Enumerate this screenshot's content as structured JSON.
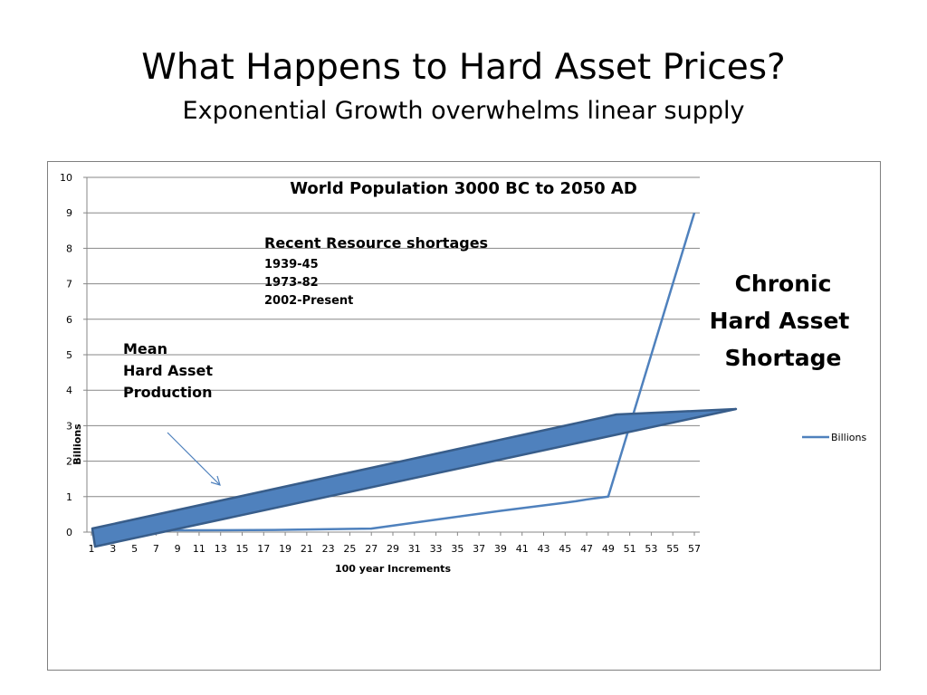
{
  "slide": {
    "title": "What Happens to Hard Asset Prices?",
    "subtitle": "Exponential Growth overwhelms linear supply"
  },
  "chart_data": {
    "type": "line",
    "title": "World Population 3000 BC to 2050 AD",
    "xlabel": "100 year Increments",
    "ylabel": "Billions",
    "x_tick_labels": [
      "1",
      "3",
      "5",
      "7",
      "9",
      "11",
      "13",
      "15",
      "17",
      "19",
      "21",
      "23",
      "25",
      "27",
      "29",
      "31",
      "33",
      "35",
      "37",
      "39",
      "41",
      "43",
      "45",
      "47",
      "49",
      "51",
      "53",
      "55",
      "57"
    ],
    "y_tick_labels": [
      "0",
      "1",
      "2",
      "3",
      "4",
      "5",
      "6",
      "7",
      "8",
      "9",
      "10"
    ],
    "xlim": [
      1,
      57
    ],
    "ylim": [
      0,
      10
    ],
    "grid": true,
    "legend_position": "right",
    "series": [
      {
        "name": "Billions",
        "color": "#4f81bd",
        "x": [
          1,
          10,
          18,
          27,
          33,
          39,
          45,
          46,
          47,
          49,
          57
        ],
        "y": [
          0.05,
          0.05,
          0.06,
          0.1,
          0.35,
          0.6,
          0.83,
          0.87,
          0.92,
          1.0,
          9.0
        ]
      }
    ],
    "annotations": {
      "shortages_title": "Recent Resource shortages",
      "shortages": [
        "1939-45",
        "1973-82",
        "2002-Present"
      ],
      "mean_production": [
        "Mean",
        "Hard Asset",
        "Production"
      ],
      "chronic": [
        "Chronic",
        "Hard Asset",
        "Shortage"
      ]
    },
    "band_color": "#4f81bd",
    "band_outline": "#385d8a"
  }
}
